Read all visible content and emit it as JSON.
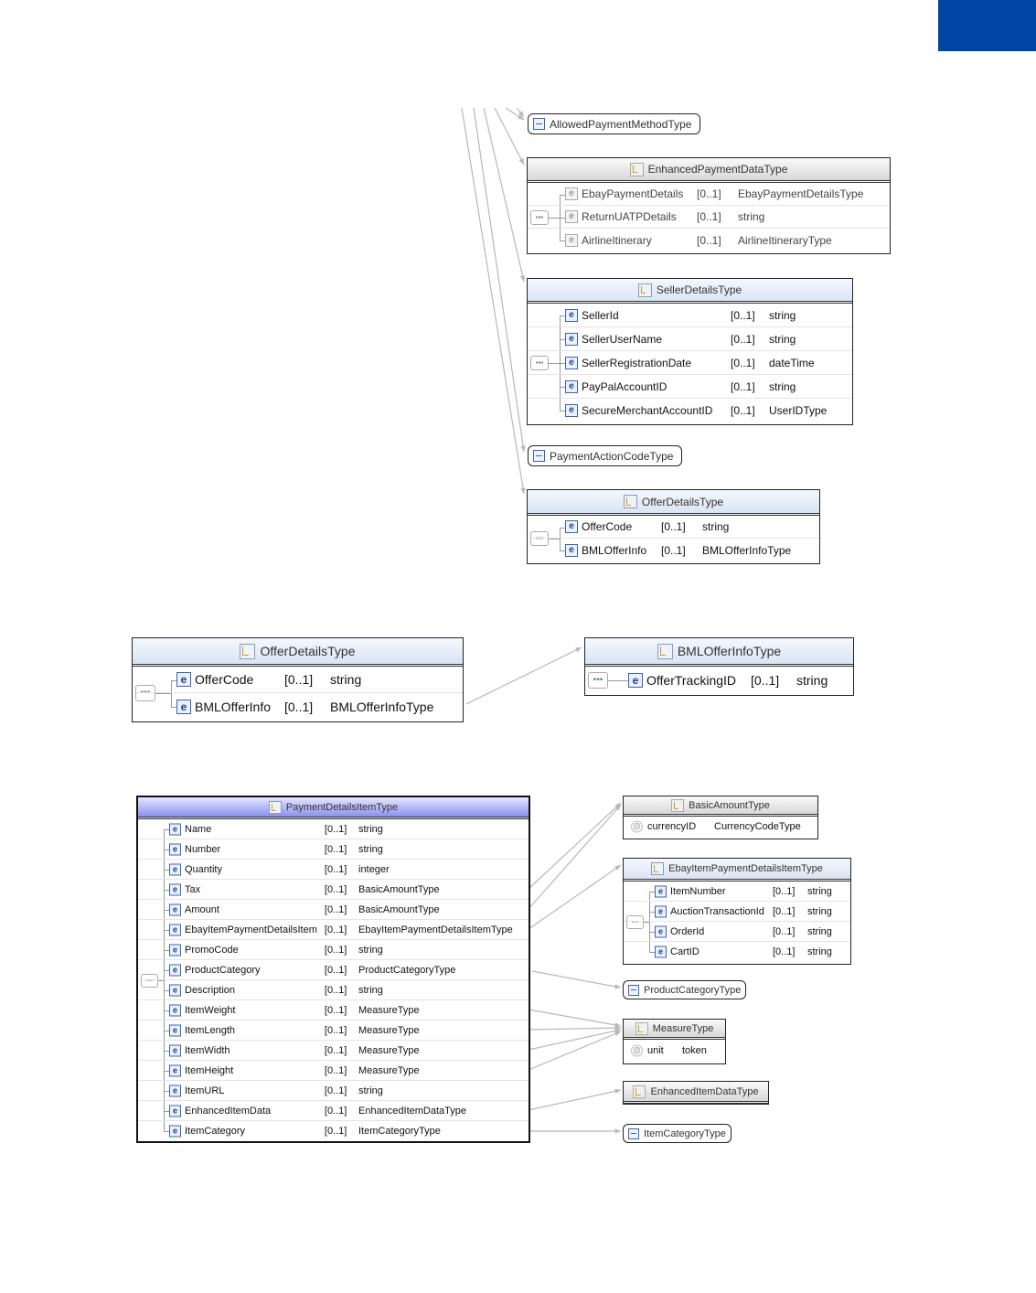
{
  "colors": {
    "corner_block": "#0045a3",
    "element_icon": "#3a64b0",
    "header_blue": "#8a90ee",
    "connector": "#b8b8b8"
  },
  "icons": {
    "complex_type": "complex-type-icon",
    "simple_type": "simple-type-icon",
    "element": "element-icon",
    "attribute": "attribute-icon",
    "sequence": "sequence-icon"
  },
  "boxes": [
    {
      "title": "AllowedPaymentMethodType",
      "kind": "simple"
    },
    {
      "title": "EnhancedPaymentDataType",
      "kind": "complex",
      "header": "gray",
      "inactive": true,
      "rows": [
        {
          "icon": "e",
          "name": "EbayPaymentDetails",
          "mult": "[0..1]",
          "type": "EbayPaymentDetailsType"
        },
        {
          "icon": "e",
          "name": "ReturnUATPDetails",
          "mult": "[0..1]",
          "type": "string"
        },
        {
          "icon": "e",
          "name": "AirlineItinerary",
          "mult": "[0..1]",
          "type": "AirlineItineraryType"
        }
      ]
    },
    {
      "title": "SellerDetailsType",
      "kind": "complex",
      "header": "lblue",
      "rows": [
        {
          "icon": "e",
          "name": "SellerId",
          "mult": "[0..1]",
          "type": "string"
        },
        {
          "icon": "e",
          "name": "SellerUserName",
          "mult": "[0..1]",
          "type": "string"
        },
        {
          "icon": "e",
          "name": "SellerRegistrationDate",
          "mult": "[0..1]",
          "type": "dateTime"
        },
        {
          "icon": "e",
          "name": "PayPalAccountID",
          "mult": "[0..1]",
          "type": "string"
        },
        {
          "icon": "e",
          "name": "SecureMerchantAccountID",
          "mult": "[0..1]",
          "type": "UserIDType"
        }
      ]
    },
    {
      "title": "PaymentActionCodeType",
      "kind": "simple"
    },
    {
      "title": "OfferDetailsType",
      "kind": "complex",
      "header": "lblue",
      "rows": [
        {
          "icon": "e",
          "name": "OfferCode",
          "mult": "[0..1]",
          "type": "string"
        },
        {
          "icon": "e",
          "name": "BMLOfferInfo",
          "mult": "[0..1]",
          "type": "BMLOfferInfoType"
        }
      ]
    },
    {
      "title": "OfferDetailsType",
      "kind": "complex",
      "header": "lblue",
      "rows": [
        {
          "icon": "e",
          "name": "OfferCode",
          "mult": "[0..1]",
          "type": "string"
        },
        {
          "icon": "e",
          "name": "BMLOfferInfo",
          "mult": "[0..1]",
          "type": "BMLOfferInfoType"
        }
      ]
    },
    {
      "title": "BMLOfferInfoType",
      "kind": "complex",
      "header": "lblue",
      "rows": [
        {
          "icon": "e",
          "name": "OfferTrackingID",
          "mult": "[0..1]",
          "type": "string"
        }
      ]
    },
    {
      "title": "PaymentDetailsItemType",
      "kind": "complex",
      "header": "blue",
      "rows": [
        {
          "icon": "e",
          "name": "Name",
          "mult": "[0..1]",
          "type": "string"
        },
        {
          "icon": "e",
          "name": "Number",
          "mult": "[0..1]",
          "type": "string"
        },
        {
          "icon": "e",
          "name": "Quantity",
          "mult": "[0..1]",
          "type": "integer"
        },
        {
          "icon": "e",
          "name": "Tax",
          "mult": "[0..1]",
          "type": "BasicAmountType"
        },
        {
          "icon": "e",
          "name": "Amount",
          "mult": "[0..1]",
          "type": "BasicAmountType"
        },
        {
          "icon": "e",
          "name": "EbayItemPaymentDetailsItem",
          "mult": "[0..1]",
          "type": "EbayItemPaymentDetailsItemType"
        },
        {
          "icon": "e",
          "name": "PromoCode",
          "mult": "[0..1]",
          "type": "string"
        },
        {
          "icon": "e",
          "name": "ProductCategory",
          "mult": "[0..1]",
          "type": "ProductCategoryType"
        },
        {
          "icon": "e",
          "name": "Description",
          "mult": "[0..1]",
          "type": "string"
        },
        {
          "icon": "e",
          "name": "ItemWeight",
          "mult": "[0..1]",
          "type": "MeasureType"
        },
        {
          "icon": "e",
          "name": "ItemLength",
          "mult": "[0..1]",
          "type": "MeasureType"
        },
        {
          "icon": "e",
          "name": "ItemWidth",
          "mult": "[0..1]",
          "type": "MeasureType"
        },
        {
          "icon": "e",
          "name": "ItemHeight",
          "mult": "[0..1]",
          "type": "MeasureType"
        },
        {
          "icon": "e",
          "name": "ItemURL",
          "mult": "[0..1]",
          "type": "string"
        },
        {
          "icon": "e",
          "name": "EnhancedItemData",
          "mult": "[0..1]",
          "type": "EnhancedItemDataType"
        },
        {
          "icon": "e",
          "name": "ItemCategory",
          "mult": "[0..1]",
          "type": "ItemCategoryType"
        }
      ]
    },
    {
      "title": "BasicAmountType",
      "kind": "complex",
      "header": "gray",
      "rows": [
        {
          "icon": "a",
          "name": "currencyID",
          "mult": "",
          "type": "CurrencyCodeType"
        }
      ]
    },
    {
      "title": "EbayItemPaymentDetailsItemType",
      "kind": "complex",
      "header": "lblue",
      "rows": [
        {
          "icon": "e",
          "name": "ItemNumber",
          "mult": "[0..1]",
          "type": "string"
        },
        {
          "icon": "e",
          "name": "AuctionTransactionId",
          "mult": "[0..1]",
          "type": "string"
        },
        {
          "icon": "e",
          "name": "OrderId",
          "mult": "[0..1]",
          "type": "string"
        },
        {
          "icon": "e",
          "name": "CartID",
          "mult": "[0..1]",
          "type": "string"
        }
      ]
    },
    {
      "title": "ProductCategoryType",
      "kind": "simple"
    },
    {
      "title": "MeasureType",
      "kind": "complex",
      "header": "gray",
      "rows": [
        {
          "icon": "a",
          "name": "unit",
          "mult": "",
          "type": "token"
        }
      ]
    },
    {
      "title": "EnhancedItemDataType",
      "kind": "complex",
      "header": "gray",
      "rows": []
    },
    {
      "title": "ItemCategoryType",
      "kind": "simple"
    }
  ]
}
